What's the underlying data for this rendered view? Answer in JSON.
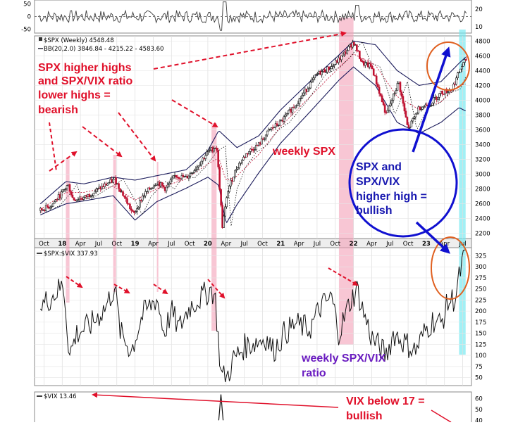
{
  "chart_data": [
    {
      "type": "line",
      "panel": "top-indicator",
      "title": "",
      "y_ticks_left": [
        "50",
        "0",
        "-50"
      ],
      "y_ticks_right": [
        "20",
        "10"
      ],
      "ylim": [
        -60,
        60
      ]
    },
    {
      "type": "candlestick",
      "panel": "spx-weekly",
      "legend": [
        {
          "label": "$SPX (Weekly) 4548.48"
        },
        {
          "label": "BB(20,2.0) 3846.84 - 4215.22 - 4583.60"
        }
      ],
      "x_tick_labels": [
        "Oct",
        "18",
        "Apr",
        "Jul",
        "Oct",
        "19",
        "Apr",
        "Jul",
        "Oct",
        "20",
        "Apr",
        "Jul",
        "Oct",
        "21",
        "Apr",
        "Jul",
        "Oct",
        "22",
        "Apr",
        "Jul",
        "Oct",
        "23",
        "Apr",
        "Jul"
      ],
      "y_ticks": [
        "4800",
        "4600",
        "4400",
        "4200",
        "4000",
        "3800",
        "3600",
        "3400",
        "3200",
        "3000",
        "2800",
        "2600",
        "2400",
        "2200"
      ],
      "ylim": [
        2150,
        4850
      ],
      "series": [
        {
          "name": "$SPX (Weekly)",
          "x": [
            2017.7,
            2017.85,
            2018.0,
            2018.08,
            2018.15,
            2018.3,
            2018.5,
            2018.72,
            2018.85,
            2018.98,
            2019.1,
            2019.3,
            2019.42,
            2019.55,
            2019.7,
            2019.85,
            2020.0,
            2020.12,
            2020.2,
            2020.28,
            2020.4,
            2020.55,
            2020.7,
            2020.85,
            2021.0,
            2021.25,
            2021.5,
            2021.7,
            2021.85,
            2022.0,
            2022.12,
            2022.25,
            2022.45,
            2022.62,
            2022.75,
            2022.9,
            2023.05,
            2023.2,
            2023.35,
            2023.48,
            2023.55
          ],
          "values": [
            2510,
            2580,
            2750,
            2860,
            2660,
            2680,
            2800,
            2930,
            2700,
            2450,
            2700,
            2900,
            2800,
            2980,
            2950,
            3100,
            3300,
            3380,
            2300,
            2800,
            3100,
            3300,
            3400,
            3600,
            3700,
            4000,
            4350,
            4450,
            4600,
            4790,
            4500,
            4450,
            3800,
            4250,
            3600,
            3900,
            3950,
            4100,
            4150,
            4450,
            4550
          ]
        },
        {
          "name": "BB upper",
          "x": [
            2017.7,
            2018.05,
            2018.3,
            2018.7,
            2019.0,
            2019.3,
            2019.7,
            2020.0,
            2020.15,
            2020.4,
            2020.7,
            2021.0,
            2021.4,
            2021.8,
            2022.0,
            2022.3,
            2022.6,
            2022.9,
            2023.2,
            2023.45,
            2023.55
          ],
          "values": [
            2600,
            2900,
            2870,
            2960,
            2920,
            2980,
            3060,
            3320,
            3590,
            3360,
            3520,
            3870,
            4250,
            4610,
            4800,
            4750,
            4400,
            4200,
            4250,
            4500,
            4590
          ]
        },
        {
          "name": "BB lower",
          "x": [
            2017.7,
            2018.05,
            2018.3,
            2018.7,
            2019.0,
            2019.3,
            2019.7,
            2020.0,
            2020.15,
            2020.25,
            2020.4,
            2020.7,
            2021.0,
            2021.4,
            2021.8,
            2022.0,
            2022.3,
            2022.6,
            2022.9,
            2023.2,
            2023.45,
            2023.55
          ],
          "values": [
            2450,
            2600,
            2640,
            2710,
            2380,
            2630,
            2810,
            2960,
            2850,
            2330,
            2590,
            3020,
            3420,
            3840,
            4270,
            4450,
            4200,
            3700,
            3550,
            3700,
            3900,
            3850
          ]
        }
      ]
    },
    {
      "type": "line",
      "panel": "spx-vix-ratio",
      "legend": [
        {
          "label": "$SPX:$VIX 337.93"
        }
      ],
      "y_ticks": [
        "325",
        "300",
        "275",
        "250",
        "225",
        "200",
        "175",
        "150",
        "125",
        "100",
        "75",
        "50"
      ],
      "ylim": [
        35,
        340
      ],
      "series": [
        {
          "name": "$SPX:$VIX",
          "x": [
            2017.7,
            2017.9,
            2018.02,
            2018.1,
            2018.2,
            2018.4,
            2018.6,
            2018.72,
            2018.8,
            2018.95,
            2019.1,
            2019.3,
            2019.4,
            2019.5,
            2019.6,
            2019.75,
            2019.9,
            2020.05,
            2020.1,
            2020.18,
            2020.25,
            2020.35,
            2020.5,
            2020.65,
            2020.8,
            2020.9,
            2021.05,
            2021.2,
            2021.4,
            2021.55,
            2021.7,
            2021.8,
            2021.95,
            2022.05,
            2022.15,
            2022.25,
            2022.35,
            2022.45,
            2022.55,
            2022.7,
            2022.85,
            2023.0,
            2023.1,
            2023.2,
            2023.3,
            2023.4,
            2023.48,
            2023.55
          ],
          "values": [
            210,
            240,
            260,
            100,
            150,
            170,
            210,
            255,
            150,
            110,
            190,
            230,
            150,
            200,
            160,
            210,
            230,
            250,
            230,
            60,
            45,
            90,
            120,
            130,
            140,
            110,
            150,
            170,
            160,
            210,
            230,
            150,
            220,
            250,
            190,
            140,
            120,
            100,
            150,
            130,
            110,
            160,
            180,
            170,
            220,
            230,
            300,
            338
          ]
        }
      ]
    },
    {
      "type": "line",
      "panel": "vix",
      "legend": [
        {
          "label": "$VIX 13.46"
        }
      ],
      "y_ticks": [
        "60",
        "50",
        "40"
      ],
      "ylim": [
        35,
        65
      ],
      "series": [
        {
          "name": "$VIX",
          "x": [
            2020.15,
            2020.18,
            2020.21
          ],
          "values": [
            40,
            64,
            40
          ]
        }
      ]
    }
  ],
  "annotations": {
    "spx_bearish": [
      "SPX higher highs",
      "and SPX/VIX ratio",
      "lower highs =",
      "bearish"
    ],
    "weekly_spx": "weekly SPX",
    "spx_bullish": [
      "SPX and",
      "SPX/VIX",
      "higher high =",
      "bullish"
    ],
    "weekly_ratio": [
      "weekly SPX/VIX",
      "ratio"
    ],
    "vix_bullish": [
      "VIX below 17 =",
      "bullish"
    ]
  },
  "colors": {
    "red_annotation": "#e0102a",
    "blue_annotation": "#1818b0",
    "purple_annotation": "#6a1cc0",
    "pink_highlight": "#f4a0b8",
    "cyan_highlight": "#70e8f0",
    "circle_orange": "#e06020",
    "circle_blue": "#1010d0"
  }
}
